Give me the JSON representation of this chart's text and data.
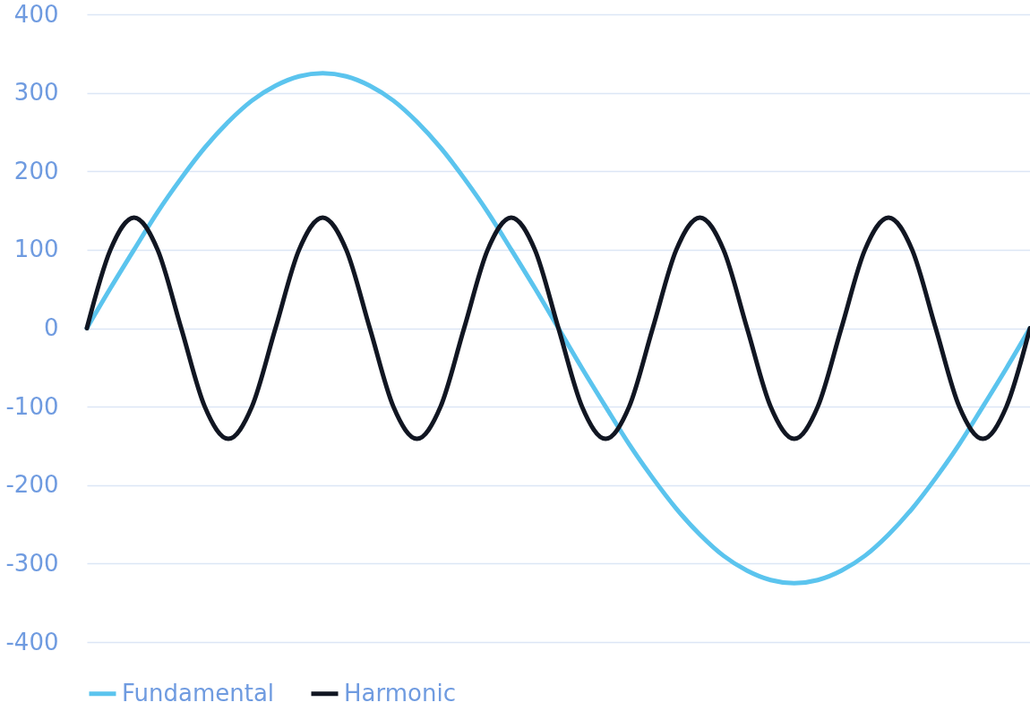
{
  "chart_data": {
    "type": "line",
    "categories": [
      null,
      null,
      null,
      null,
      null,
      null,
      null,
      null,
      null,
      null,
      null,
      null,
      null,
      null,
      null,
      null,
      null,
      null,
      null,
      null,
      null,
      null,
      null,
      null,
      null,
      null,
      null,
      null,
      null,
      null,
      null,
      null,
      null,
      null,
      null,
      null,
      null,
      null,
      null,
      null,
      null
    ],
    "series": [
      {
        "name": "Fundamental",
        "color": "#5bc4ee",
        "values": [
          0,
          51,
          100,
          148,
          191,
          230,
          263,
          290,
          309,
          321,
          325,
          321,
          309,
          290,
          263,
          230,
          191,
          148,
          100,
          51,
          0,
          -51,
          -100,
          -148,
          -191,
          -230,
          -263,
          -290,
          -309,
          -321,
          -325,
          -321,
          -309,
          -290,
          -263,
          -230,
          -191,
          -148,
          -100,
          -51,
          0
        ]
      },
      {
        "name": "Harmonic",
        "color": "#111622",
        "values": [
          0,
          100,
          141,
          100,
          0,
          -100,
          -141,
          -100,
          0,
          100,
          141,
          100,
          0,
          -100,
          -141,
          -100,
          0,
          100,
          141,
          100,
          0,
          -100,
          -141,
          -100,
          0,
          100,
          141,
          100,
          0,
          -100,
          -141,
          -100,
          0,
          100,
          141,
          100,
          0,
          -100,
          -141,
          -100,
          0
        ]
      }
    ],
    "ylim": [
      -400,
      400
    ],
    "yticks": [
      -400,
      -300,
      -200,
      -100,
      0,
      100,
      200,
      300,
      400
    ],
    "grid": "y",
    "legend": "bottom",
    "tick_labels": "y",
    "line_style": "solid",
    "marker": "none"
  }
}
